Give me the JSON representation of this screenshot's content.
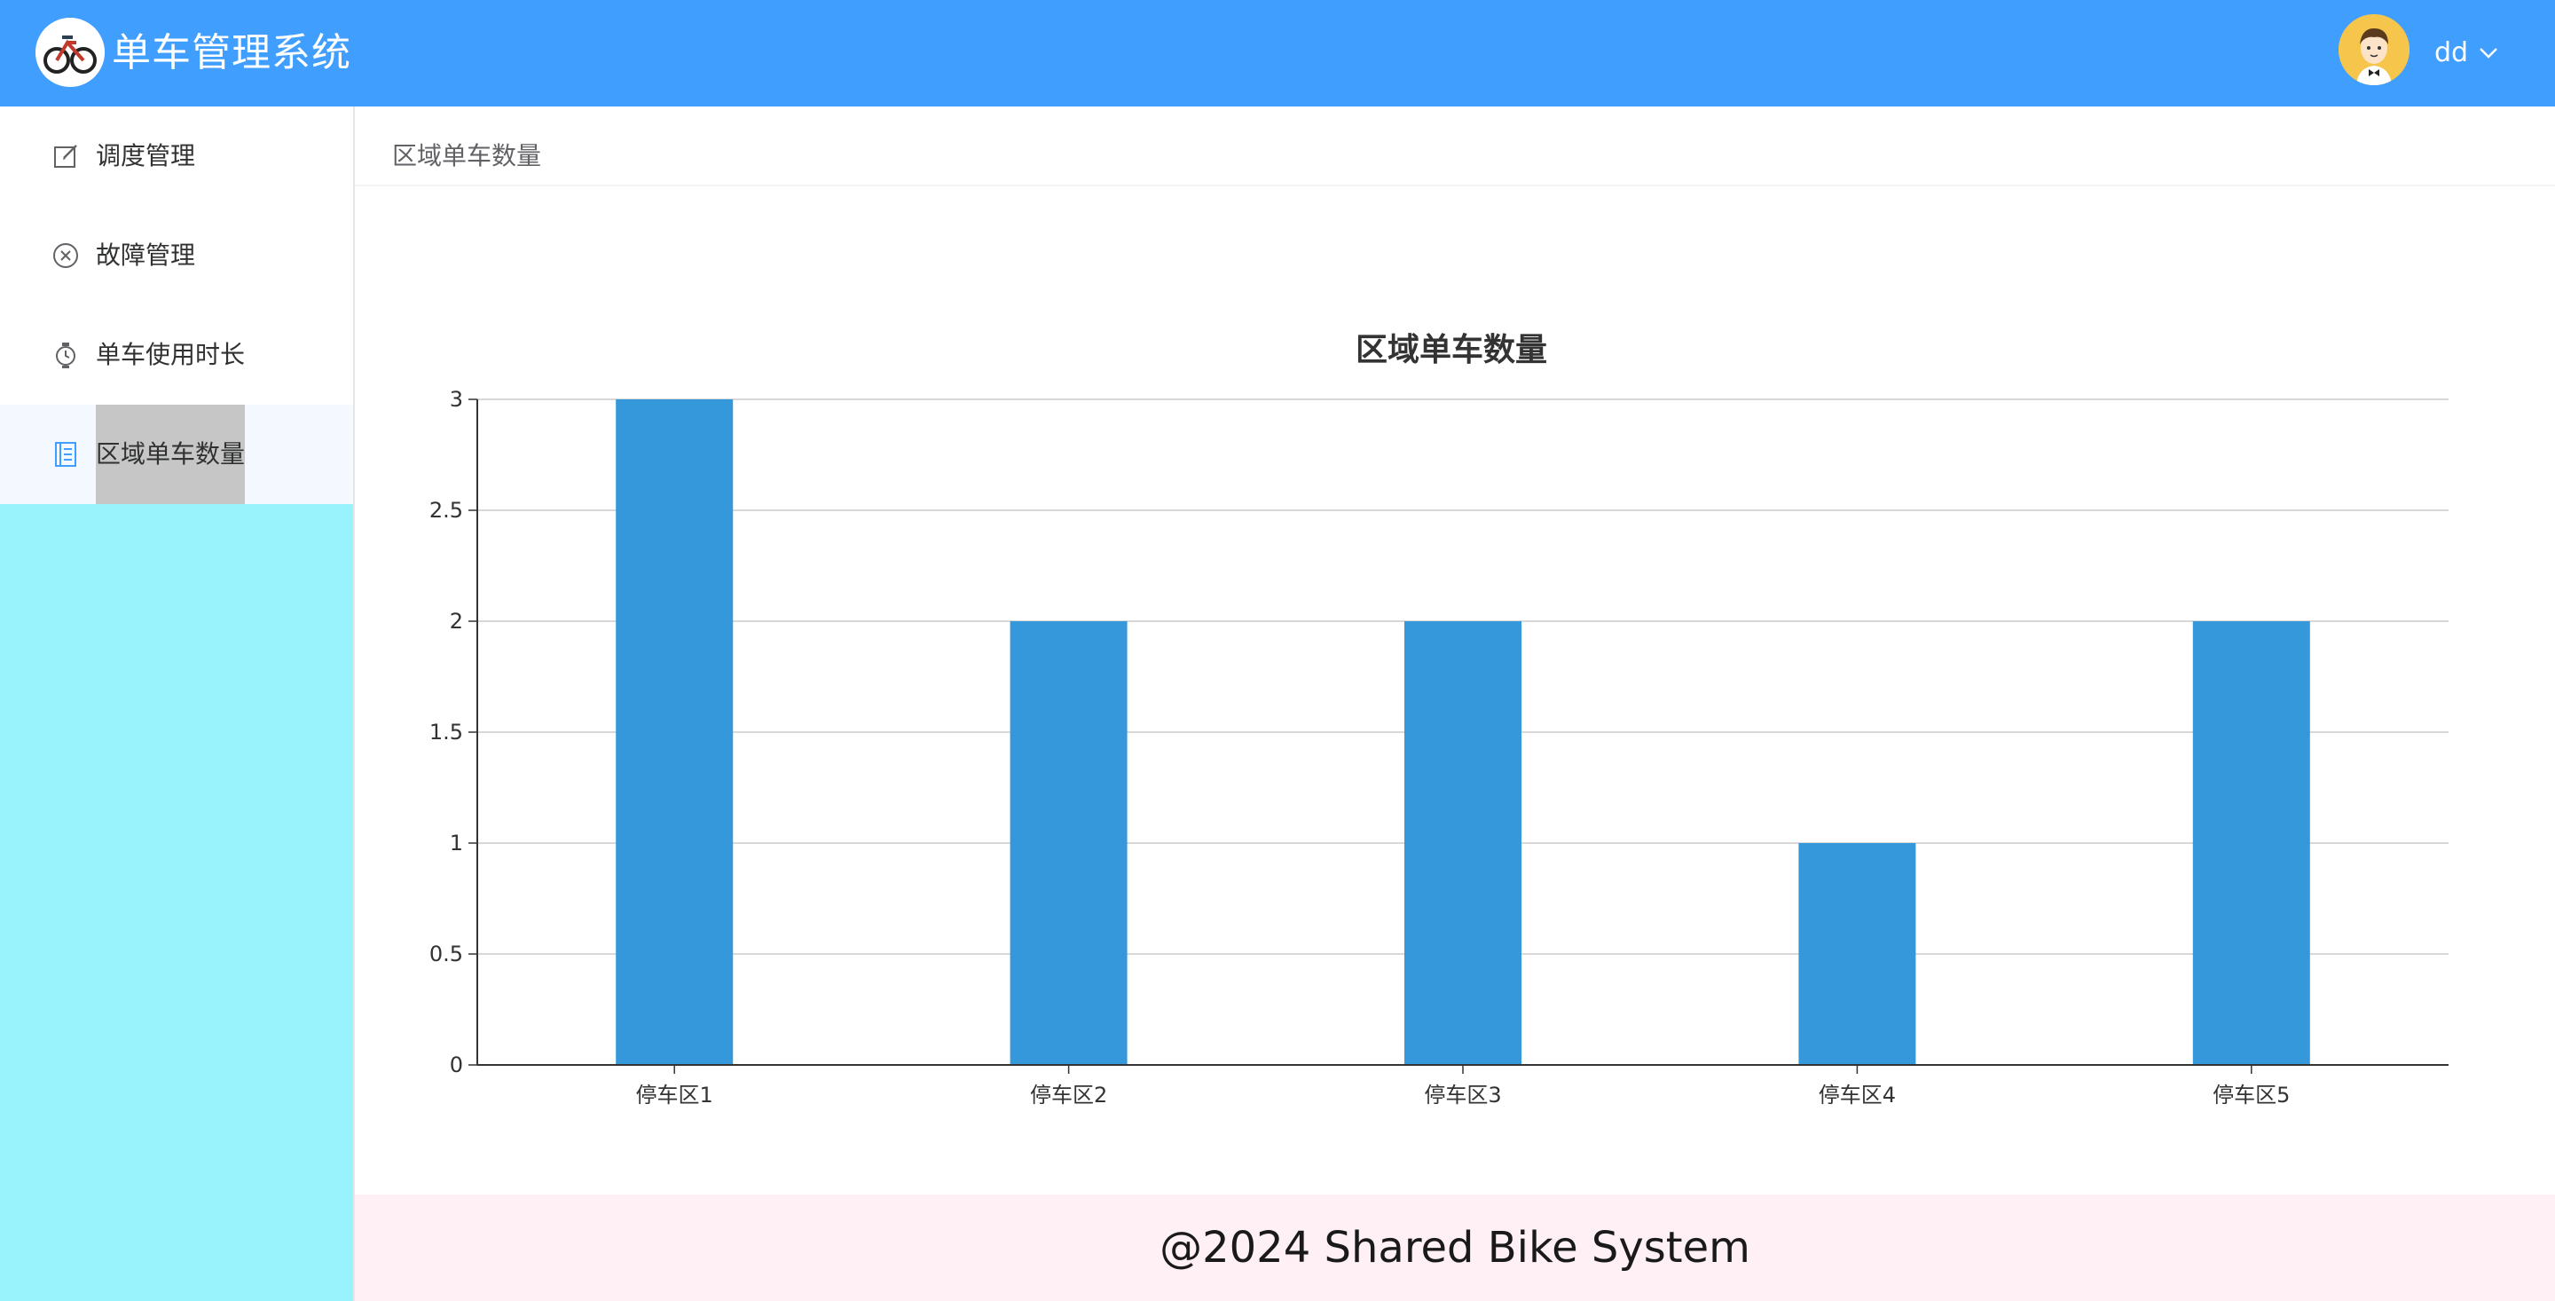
{
  "header": {
    "app_title": "单车管理系统",
    "logo_icon": "bike-logo-icon",
    "user": {
      "name": "dd",
      "avatar_icon": "user-avatar-icon",
      "dropdown_icon": "chevron-down-icon"
    }
  },
  "sidebar": {
    "items": [
      {
        "label": "调度管理",
        "icon": "edit-icon",
        "active": false
      },
      {
        "label": "故障管理",
        "icon": "circle-close-icon",
        "active": false
      },
      {
        "label": "单车使用时长",
        "icon": "watch-icon",
        "active": false
      },
      {
        "label": "区域单车数量",
        "icon": "notebook-icon",
        "active": true
      }
    ]
  },
  "main": {
    "breadcrumb": "区域单车数量"
  },
  "colors": {
    "header_bg": "#409eff",
    "sidebar_bg": "#99f3fd",
    "bar": "#3498db",
    "footer_bg": "#fff0f5",
    "active_icon": "#409eff"
  },
  "chart_data": {
    "type": "bar",
    "title": "区域单车数量",
    "categories": [
      "停车区1",
      "停车区2",
      "停车区3",
      "停车区4",
      "停车区5"
    ],
    "values": [
      3,
      2,
      2,
      1,
      2
    ],
    "yticks": [
      "0",
      "0.5",
      "1",
      "1.5",
      "2",
      "2.5",
      "3"
    ],
    "ylim": [
      0,
      3
    ],
    "grid": true,
    "xlabel": "",
    "ylabel": ""
  },
  "footer": {
    "text": "@2024 Shared Bike System"
  }
}
